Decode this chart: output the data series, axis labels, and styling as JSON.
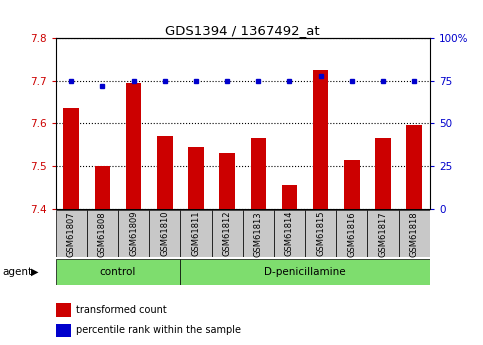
{
  "title": "GDS1394 / 1367492_at",
  "samples": [
    "GSM61807",
    "GSM61808",
    "GSM61809",
    "GSM61810",
    "GSM61811",
    "GSM61812",
    "GSM61813",
    "GSM61814",
    "GSM61815",
    "GSM61816",
    "GSM61817",
    "GSM61818"
  ],
  "red_values": [
    7.635,
    7.5,
    7.695,
    7.57,
    7.545,
    7.53,
    7.565,
    7.455,
    7.725,
    7.515,
    7.565,
    7.595
  ],
  "blue_values": [
    75,
    72,
    75,
    75,
    75,
    75,
    75,
    75,
    78,
    75,
    75,
    75
  ],
  "ylim_left": [
    7.4,
    7.8
  ],
  "ylim_right": [
    0,
    100
  ],
  "yticks_left": [
    7.4,
    7.5,
    7.6,
    7.7,
    7.8
  ],
  "yticks_right": [
    0,
    25,
    50,
    75,
    100
  ],
  "ytick_labels_right": [
    "0",
    "25",
    "50",
    "75",
    "100%"
  ],
  "ctrl_count": 4,
  "dp_count": 8,
  "bar_color": "#CC0000",
  "dot_color": "#0000CC",
  "tick_bg_color": "#C8C8C8",
  "green_color": "#7EDD6E",
  "agent_label": "agent",
  "legend_red": "transformed count",
  "legend_blue": "percentile rank within the sample",
  "left_tick_color": "#CC0000",
  "right_tick_color": "#0000CC",
  "bar_width": 0.5
}
